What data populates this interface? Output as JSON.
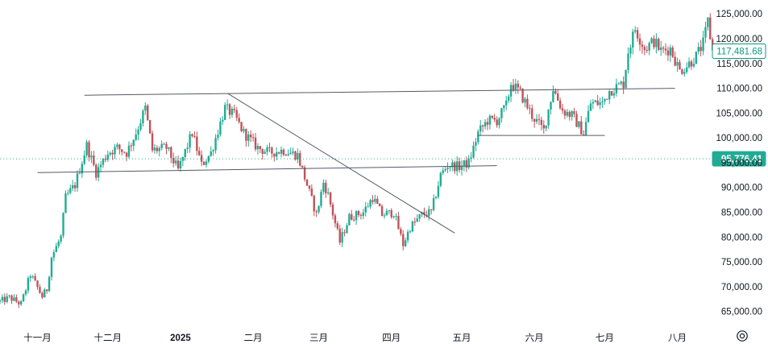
{
  "chart_data": {
    "type": "candlestick",
    "title": "",
    "xlabel": "",
    "ylabel": "",
    "ylim": [
      62500,
      126500
    ],
    "grid": false,
    "y_ticks": [
      65000,
      70000,
      75000,
      80000,
      85000,
      90000,
      95000,
      100000,
      105000,
      110000,
      115000,
      120000,
      125000
    ],
    "y_tick_labels": [
      "65,000.00",
      "70,000.00",
      "75,000.00",
      "80,000.00",
      "85,000.00",
      "90,000.00",
      "95,000.00",
      "100,000.00",
      "105,000.00",
      "110,000.00",
      "115,000.00",
      "120,000.00",
      "125,000.00"
    ],
    "x_range": [
      "2024-10-16",
      "2025-08-18"
    ],
    "x_ticks": [
      {
        "date": "2024-11-01",
        "label": "十一月",
        "bold": false
      },
      {
        "date": "2024-12-01",
        "label": "十二月",
        "bold": false
      },
      {
        "date": "2025-01-01",
        "label": "2025",
        "bold": true
      },
      {
        "date": "2025-02-01",
        "label": "二月",
        "bold": false
      },
      {
        "date": "2025-03-01",
        "label": "三月",
        "bold": false
      },
      {
        "date": "2025-04-01",
        "label": "四月",
        "bold": false
      },
      {
        "date": "2025-05-01",
        "label": "五月",
        "bold": false
      },
      {
        "date": "2025-06-01",
        "label": "六月",
        "bold": false
      },
      {
        "date": "2025-07-01",
        "label": "七月",
        "bold": false
      },
      {
        "date": "2025-08-01",
        "label": "八月",
        "bold": false
      }
    ],
    "close_path": [
      [
        "2024-10-16",
        67000
      ],
      [
        "2024-10-20",
        67800
      ],
      [
        "2024-10-25",
        66500
      ],
      [
        "2024-10-29",
        72500
      ],
      [
        "2024-11-03",
        68000
      ],
      [
        "2024-11-05",
        69500
      ],
      [
        "2024-11-07",
        76000
      ],
      [
        "2024-11-11",
        80000
      ],
      [
        "2024-11-13",
        88000
      ],
      [
        "2024-11-17",
        90500
      ],
      [
        "2024-11-22",
        98500
      ],
      [
        "2024-11-26",
        93000
      ],
      [
        "2024-12-01",
        97000
      ],
      [
        "2024-12-05",
        98000
      ],
      [
        "2024-12-09",
        97000
      ],
      [
        "2024-12-13",
        101000
      ],
      [
        "2024-12-17",
        106000
      ],
      [
        "2024-12-20",
        97500
      ],
      [
        "2024-12-26",
        98000
      ],
      [
        "2024-12-31",
        93500
      ],
      [
        "2025-01-06",
        101000
      ],
      [
        "2025-01-10",
        94500
      ],
      [
        "2025-01-14",
        97000
      ],
      [
        "2025-01-20",
        106000
      ],
      [
        "2025-01-24",
        104500
      ],
      [
        "2025-01-28",
        101000
      ],
      [
        "2025-02-03",
        98000
      ],
      [
        "2025-02-08",
        97000
      ],
      [
        "2025-02-14",
        97500
      ],
      [
        "2025-02-20",
        96500
      ],
      [
        "2025-02-25",
        89000
      ],
      [
        "2025-02-28",
        84500
      ],
      [
        "2025-03-03",
        91000
      ],
      [
        "2025-03-05",
        88500
      ],
      [
        "2025-03-10",
        79000
      ],
      [
        "2025-03-14",
        84000
      ],
      [
        "2025-03-20",
        85000
      ],
      [
        "2025-03-24",
        88000
      ],
      [
        "2025-03-28",
        84500
      ],
      [
        "2025-04-02",
        85000
      ],
      [
        "2025-04-06",
        78500
      ],
      [
        "2025-04-09",
        82000
      ],
      [
        "2025-04-14",
        84500
      ],
      [
        "2025-04-18",
        85000
      ],
      [
        "2025-04-22",
        92500
      ],
      [
        "2025-04-25",
        94500
      ],
      [
        "2025-04-30",
        94200
      ],
      [
        "2025-05-04",
        95000
      ],
      [
        "2025-05-08",
        101000
      ],
      [
        "2025-05-12",
        103500
      ],
      [
        "2025-05-16",
        103500
      ],
      [
        "2025-05-20",
        106500
      ],
      [
        "2025-05-22",
        111000
      ],
      [
        "2025-05-26",
        109000
      ],
      [
        "2025-05-31",
        104500
      ],
      [
        "2025-06-05",
        101500
      ],
      [
        "2025-06-09",
        110000
      ],
      [
        "2025-06-13",
        105500
      ],
      [
        "2025-06-17",
        104500
      ],
      [
        "2025-06-22",
        101000
      ],
      [
        "2025-06-25",
        107000
      ],
      [
        "2025-06-30",
        107000
      ],
      [
        "2025-07-03",
        109500
      ],
      [
        "2025-07-09",
        111000
      ],
      [
        "2025-07-11",
        117500
      ],
      [
        "2025-07-14",
        122000
      ],
      [
        "2025-07-18",
        118000
      ],
      [
        "2025-07-22",
        119500
      ],
      [
        "2025-07-25",
        117500
      ],
      [
        "2025-07-29",
        118000
      ],
      [
        "2025-08-02",
        113500
      ],
      [
        "2025-08-06",
        115000
      ],
      [
        "2025-08-09",
        116500
      ],
      [
        "2025-08-12",
        119000
      ],
      [
        "2025-08-14",
        123500
      ],
      [
        "2025-08-16",
        117500
      ]
    ],
    "trend_lines": [
      {
        "from": [
          "2024-11-21",
          108600
        ],
        "to": [
          "2025-07-31",
          110000
        ]
      },
      {
        "from": [
          "2024-11-01",
          93000
        ],
        "to": [
          "2025-05-16",
          94400
        ]
      },
      {
        "from": [
          "2025-01-21",
          109000
        ],
        "to": [
          "2025-04-28",
          80800
        ]
      },
      {
        "from": [
          "2025-05-08",
          100500
        ],
        "to": [
          "2025-07-01",
          100500
        ]
      }
    ],
    "price_lines": [
      {
        "value": 117481.68,
        "label": "117,481.68",
        "style": "solid",
        "color": "#089981"
      },
      {
        "value": 95776.41,
        "label": "95,776.41",
        "style": "dotted",
        "color": "#22ab94"
      }
    ]
  },
  "colors": {
    "up": "#22ab94",
    "down": "#c0525a",
    "up_bright": "#2e9e2e",
    "line": "#555a66",
    "axis_text": "#131722"
  },
  "icons": {
    "settings": "settings-gear-icon"
  }
}
